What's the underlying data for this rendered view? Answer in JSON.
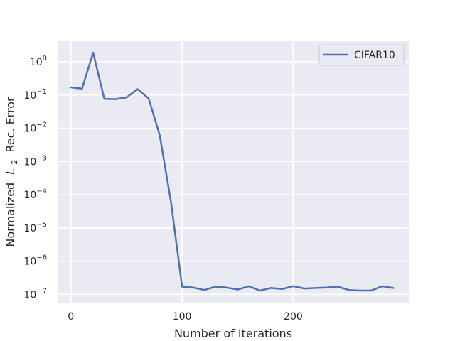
{
  "chart_data": {
    "type": "line",
    "xlabel": "Number of Iterations",
    "ylabel_prefix": "Normalized",
    "ylabel_var": "L",
    "ylabel_sub": "2",
    "ylabel_suffix": "Rec. Error",
    "y_scale": "log",
    "xlim": [
      -12,
      304
    ],
    "ylim_exp": [
      -7.25,
      0.62
    ],
    "x_ticks": [
      0,
      100,
      200
    ],
    "y_tick_exponents": [
      0,
      -1,
      -2,
      -3,
      -4,
      -5,
      -6,
      -7
    ],
    "grid": true,
    "legend_position": "top-right",
    "series": [
      {
        "name": "CIFAR10",
        "color": "#4c72b0",
        "x": [
          0,
          10,
          20,
          30,
          40,
          50,
          60,
          70,
          80,
          90,
          100,
          110,
          120,
          130,
          140,
          150,
          160,
          170,
          180,
          190,
          200,
          210,
          220,
          230,
          240,
          250,
          260,
          270,
          280,
          290
        ],
        "y": [
          0.17,
          0.155,
          1.9,
          0.077,
          0.075,
          0.085,
          0.15,
          0.078,
          0.006,
          6e-05,
          1.7e-07,
          1.6e-07,
          1.35e-07,
          1.7e-07,
          1.6e-07,
          1.4e-07,
          1.75e-07,
          1.3e-07,
          1.55e-07,
          1.45e-07,
          1.75e-07,
          1.5e-07,
          1.55e-07,
          1.6e-07,
          1.7e-07,
          1.35e-07,
          1.3e-07,
          1.3e-07,
          1.75e-07,
          1.55e-07
        ]
      }
    ]
  }
}
